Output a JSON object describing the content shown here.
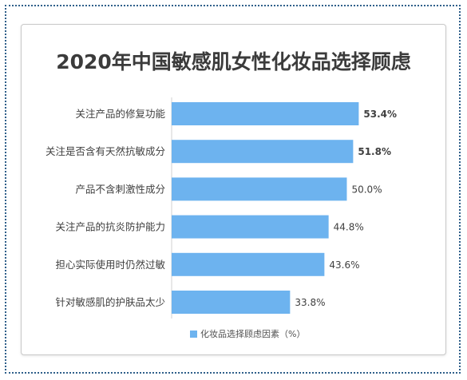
{
  "chart_data": {
    "type": "bar",
    "orientation": "horizontal",
    "title": "2020年中国敏感肌女性化妆品选择顾虑",
    "categories": [
      "关注产品的修复功能",
      "关注是否含有天然抗敏成分",
      "产品不含刺激性成分",
      "关注产品的抗炎防护能力",
      "担心实际使用时仍然过敏",
      "针对敏感肌的护肤品太少"
    ],
    "series": [
      {
        "name": "化妆品选择顾虑因素（%）",
        "values": [
          53.4,
          51.8,
          50.0,
          44.8,
          43.6,
          33.8
        ]
      }
    ],
    "value_labels": [
      "53.4%",
      "51.8%",
      "50.0%",
      "44.8%",
      "43.6%",
      "33.8%"
    ],
    "bold_labels": [
      true,
      true,
      false,
      false,
      false,
      false
    ],
    "xlim": [
      0,
      56.5
    ],
    "grid": false,
    "legend_position": "bottom",
    "bar_color": "#6db3ef"
  }
}
